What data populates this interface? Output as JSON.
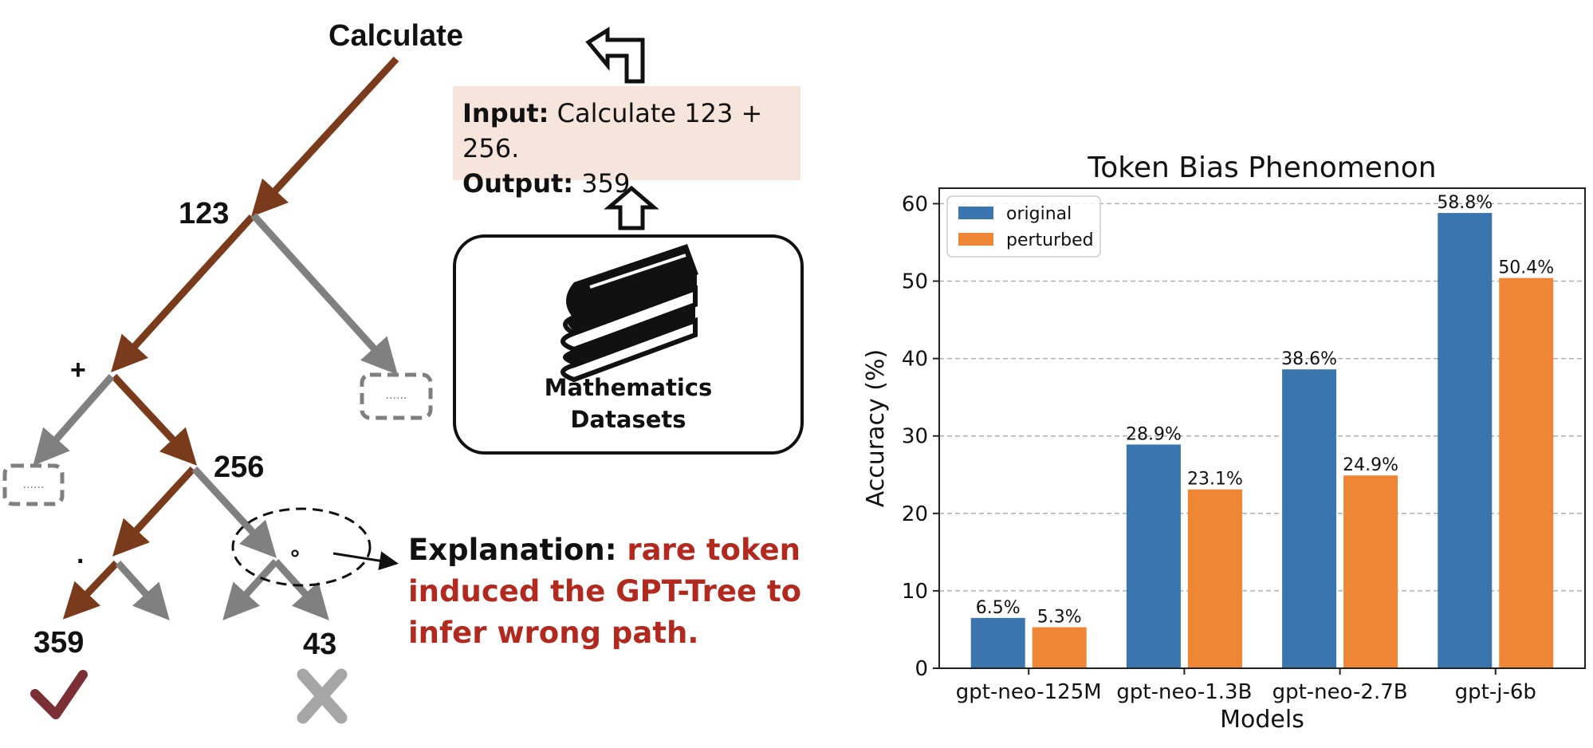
{
  "tree": {
    "root_label": "Calculate",
    "node_123": "123",
    "node_plus": "+",
    "node_256": "256",
    "node_dot": ".",
    "node_degree": "°",
    "node_359": "359",
    "node_43": "43",
    "placeholder_1": "......",
    "placeholder_2": "......"
  },
  "io": {
    "input_label": "Input:",
    "input_text": " Calculate 123 + 256.",
    "output_label": "Output:",
    "output_text": " 359"
  },
  "dataset": {
    "line1": "Mathematics",
    "line2": "Datasets"
  },
  "explanation": {
    "label": "Explanation:",
    "text_1": " rare token",
    "text_2": "induced the GPT-Tree to",
    "text_3": "infer wrong path."
  },
  "colors": {
    "correct_path": "#7a3b1c",
    "other_path": "#808080",
    "io_box": "#f7e4da",
    "explanation_red": "#b22a1f",
    "check": "#7a3035",
    "cross": "#a6a6a6"
  },
  "chart_data": {
    "type": "bar",
    "title": "Token Bias Phenomenon",
    "xlabel": "Models",
    "ylabel": "Accuracy (%)",
    "categories": [
      "gpt-neo-125M",
      "gpt-neo-1.3B",
      "gpt-neo-2.7B",
      "gpt-j-6b"
    ],
    "series": [
      {
        "name": "original",
        "values": [
          6.5,
          28.9,
          38.6,
          58.8
        ],
        "labels": [
          "6.5%",
          "28.9%",
          "38.6%",
          "58.8%"
        ],
        "color": "#3b75af"
      },
      {
        "name": "perturbed",
        "values": [
          5.3,
          23.1,
          24.9,
          50.4
        ],
        "labels": [
          "5.3%",
          "23.1%",
          "24.9%",
          "50.4%"
        ],
        "color": "#ef8636"
      }
    ],
    "yticks": [
      "0",
      "10",
      "20",
      "30",
      "40",
      "50",
      "60"
    ],
    "ylim": [
      0,
      62
    ],
    "grid": true,
    "legend_position": "top-left"
  }
}
